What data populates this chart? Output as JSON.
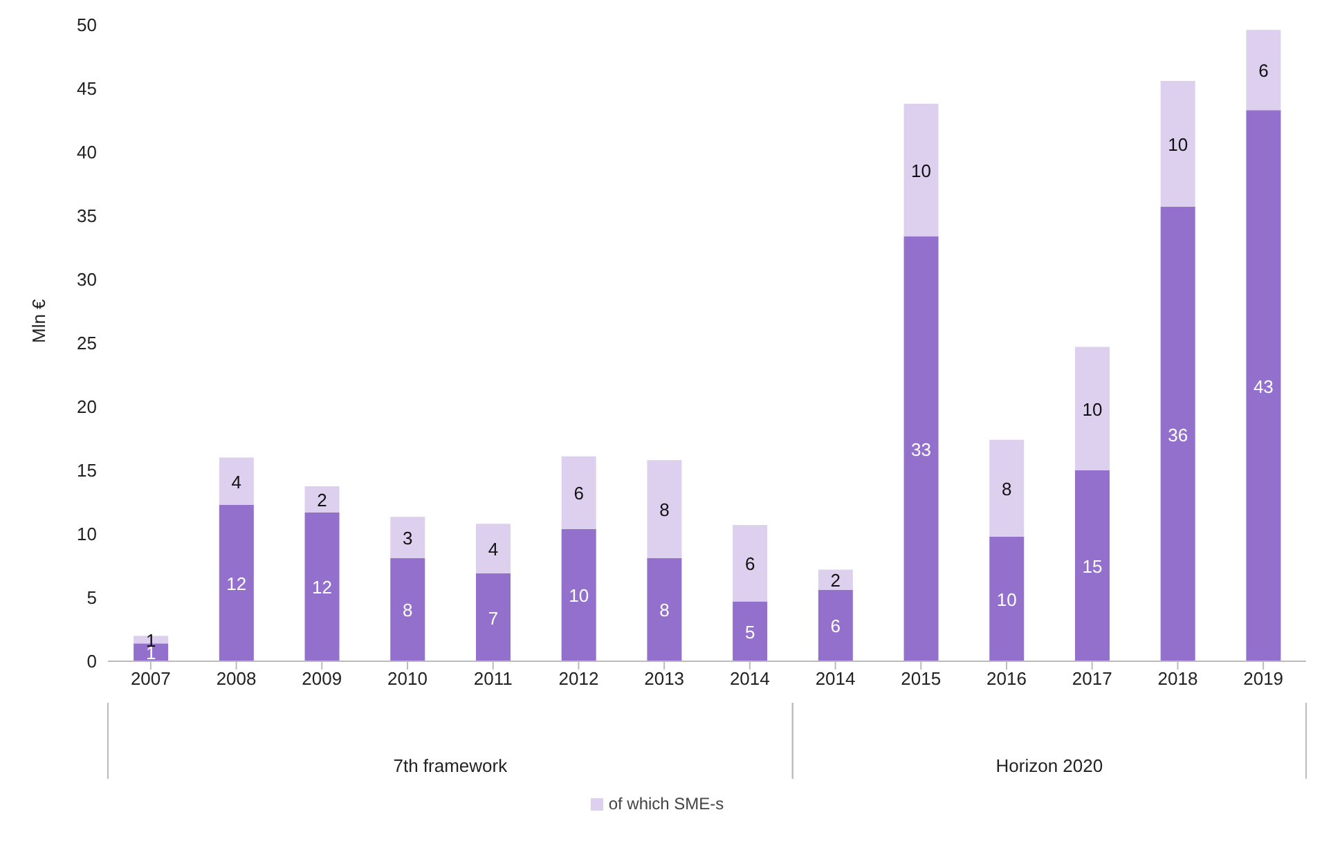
{
  "chart_data": {
    "type": "bar",
    "stacked": true,
    "ylabel": "Mln €",
    "categories": [
      "2007",
      "2008",
      "2009",
      "2010",
      "2011",
      "2012",
      "2013",
      "2014",
      "2014",
      "2015",
      "2016",
      "2017",
      "2018",
      "2019"
    ],
    "series": [
      {
        "color": "#9370cb",
        "values": [
          1.4,
          12.3,
          11.7,
          8.1,
          6.9,
          10.4,
          8.1,
          4.7,
          5.6,
          33.4,
          9.8,
          15.0,
          35.7,
          43.3
        ],
        "value_labels": [
          "1",
          "12",
          "12",
          "8",
          "7",
          "10",
          "8",
          "5",
          "6",
          "33",
          "10",
          "15",
          "36",
          "43"
        ]
      },
      {
        "name": "of which SME-s",
        "color": "#dcd0ee",
        "values": [
          0.6,
          3.7,
          2.05,
          3.25,
          3.9,
          5.7,
          7.7,
          6.0,
          1.6,
          10.4,
          7.6,
          9.7,
          9.9,
          6.3
        ],
        "value_labels": [
          "1",
          "4",
          "2",
          "3",
          "4",
          "6",
          "8",
          "6",
          "2",
          "10",
          "8",
          "10",
          "10",
          "6"
        ]
      }
    ],
    "annotations": [
      "7th framework",
      "Horizon 2020"
    ],
    "ylim": [
      0,
      50
    ],
    "yticks": [
      0,
      5,
      10,
      15,
      20,
      25,
      30,
      35,
      40,
      45,
      50
    ],
    "grid": false,
    "legend": "bottom"
  }
}
